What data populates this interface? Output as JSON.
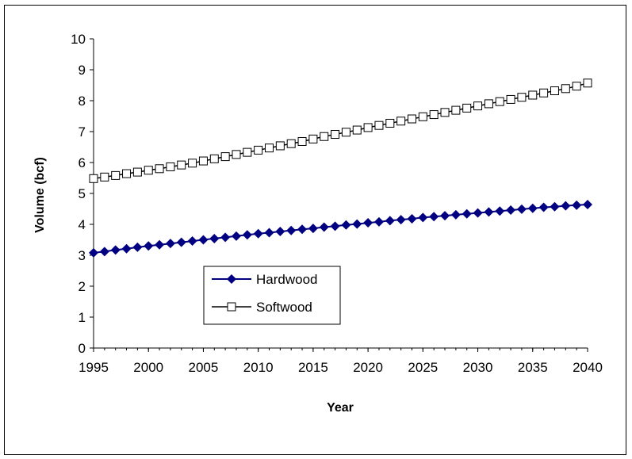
{
  "chart_data": {
    "type": "line",
    "title": "",
    "xlabel": "Year",
    "ylabel": "Volume (bcf)",
    "xlim": [
      1995,
      2040
    ],
    "ylim": [
      0,
      10
    ],
    "x_ticks": [
      "1995",
      "2000",
      "2005",
      "2010",
      "2015",
      "2020",
      "2025",
      "2030",
      "2035",
      "2040"
    ],
    "y_ticks": [
      "0",
      "1",
      "2",
      "3",
      "4",
      "5",
      "6",
      "7",
      "8",
      "9",
      "10"
    ],
    "grid": false,
    "legend_position": "lower-left-center",
    "x": [
      1995,
      1996,
      1997,
      1998,
      1999,
      2000,
      2001,
      2002,
      2003,
      2004,
      2005,
      2006,
      2007,
      2008,
      2009,
      2010,
      2011,
      2012,
      2013,
      2014,
      2015,
      2016,
      2017,
      2018,
      2019,
      2020,
      2021,
      2022,
      2023,
      2024,
      2025,
      2026,
      2027,
      2028,
      2029,
      2030,
      2031,
      2032,
      2033,
      2034,
      2035,
      2036,
      2037,
      2038,
      2039,
      2040
    ],
    "series": [
      {
        "name": "Hardwood",
        "color": "#000080",
        "marker": "filled-diamond",
        "values": [
          3.08,
          3.12,
          3.17,
          3.21,
          3.26,
          3.3,
          3.34,
          3.38,
          3.42,
          3.46,
          3.5,
          3.54,
          3.58,
          3.62,
          3.66,
          3.7,
          3.73,
          3.77,
          3.8,
          3.84,
          3.87,
          3.91,
          3.94,
          3.98,
          4.01,
          4.05,
          4.08,
          4.12,
          4.15,
          4.18,
          4.22,
          4.25,
          4.28,
          4.31,
          4.34,
          4.37,
          4.4,
          4.43,
          4.46,
          4.49,
          4.52,
          4.55,
          4.57,
          4.6,
          4.62,
          4.64
        ]
      },
      {
        "name": "Softwood",
        "color": "#000000",
        "marker": "open-square",
        "values": [
          5.48,
          5.53,
          5.58,
          5.64,
          5.69,
          5.75,
          5.8,
          5.86,
          5.92,
          5.98,
          6.05,
          6.12,
          6.19,
          6.26,
          6.33,
          6.4,
          6.47,
          6.54,
          6.61,
          6.68,
          6.76,
          6.84,
          6.91,
          6.98,
          7.05,
          7.13,
          7.2,
          7.27,
          7.34,
          7.41,
          7.48,
          7.55,
          7.62,
          7.69,
          7.76,
          7.83,
          7.9,
          7.97,
          8.04,
          8.11,
          8.18,
          8.25,
          8.32,
          8.39,
          8.47,
          8.57
        ]
      }
    ]
  }
}
